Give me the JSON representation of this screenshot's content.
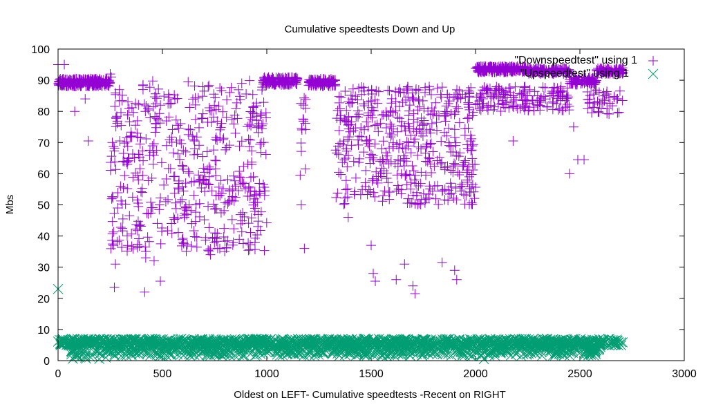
{
  "chart_data": {
    "type": "scatter",
    "title": "Cumulative speedtests Down and Up",
    "xlabel": "Oldest on LEFT- Cumulative speedtests -Recent on RIGHT",
    "ylabel": "Mbs",
    "xlim": [
      0,
      3000
    ],
    "ylim": [
      0,
      100
    ],
    "xticks": [
      0,
      500,
      1000,
      1500,
      2000,
      2500,
      3000
    ],
    "yticks": [
      0,
      10,
      20,
      30,
      40,
      50,
      60,
      70,
      80,
      90,
      100
    ],
    "grid": false,
    "legend_position": "top-right",
    "series": [
      {
        "name": "\"Downspeedtest\" using 1",
        "marker": "plus",
        "color": "#9400d3",
        "dense_regions": [
          {
            "x": [
              0,
              250
            ],
            "y": [
              88,
              90.5
            ],
            "n": 260
          },
          {
            "x": [
              250,
              1000
            ],
            "y": [
              35,
              90
            ],
            "n": 520
          },
          {
            "x": [
              980,
              1150
            ],
            "y": [
              88.5,
              91
            ],
            "n": 130
          },
          {
            "x": [
              1160,
              1190
            ],
            "y": [
              60,
              90
            ],
            "n": 15
          },
          {
            "x": [
              1200,
              1330
            ],
            "y": [
              88,
              90.5
            ],
            "n": 110
          },
          {
            "x": [
              1330,
              2000
            ],
            "y": [
              50,
              88
            ],
            "n": 480
          },
          {
            "x": [
              2000,
              2250
            ],
            "y": [
              92.5,
              94.5
            ],
            "n": 200
          },
          {
            "x": [
              2000,
              2450
            ],
            "y": [
              80,
              88
            ],
            "n": 160
          },
          {
            "x": [
              2250,
              2450
            ],
            "y": [
              92,
              94
            ],
            "n": 140
          },
          {
            "x": [
              2450,
              2580
            ],
            "y": [
              88.5,
              91
            ],
            "n": 80
          },
          {
            "x": [
              2580,
              2710
            ],
            "y": [
              92,
              94
            ],
            "n": 90
          },
          {
            "x": [
              2530,
              2710
            ],
            "y": [
              79,
              87
            ],
            "n": 40
          }
        ],
        "points": [
          [
            0,
            95
          ],
          [
            30,
            95
          ],
          [
            80,
            80
          ],
          [
            130,
            84
          ],
          [
            145,
            70.5
          ],
          [
            250,
            92
          ],
          [
            255,
            91
          ],
          [
            260,
            70
          ],
          [
            265,
            37
          ],
          [
            270,
            23.5
          ],
          [
            275,
            31
          ],
          [
            285,
            49
          ],
          [
            300,
            56
          ],
          [
            415,
            22
          ],
          [
            420,
            33
          ],
          [
            460,
            32
          ],
          [
            490,
            25.5
          ],
          [
            600,
            38
          ],
          [
            730,
            34
          ],
          [
            1160,
            59.5
          ],
          [
            1165,
            50
          ],
          [
            1180,
            36
          ],
          [
            1390,
            46
          ],
          [
            1500,
            37
          ],
          [
            1510,
            28
          ],
          [
            1520,
            25.5
          ],
          [
            1620,
            26
          ],
          [
            1660,
            31
          ],
          [
            1700,
            24
          ],
          [
            1710,
            21.5
          ],
          [
            1840,
            31.5
          ],
          [
            1900,
            29
          ],
          [
            1910,
            26
          ],
          [
            2180,
            70.5
          ],
          [
            2450,
            60
          ],
          [
            2470,
            75
          ],
          [
            2490,
            64.5
          ],
          [
            2520,
            64.5
          ],
          [
            2680,
            79.5
          ],
          [
            2620,
            85
          ]
        ]
      },
      {
        "name": "\"Upspeedtest\" using 1",
        "marker": "cross",
        "color": "#009e73",
        "dense_regions": [
          {
            "x": [
              0,
              2710
            ],
            "y": [
              4.8,
              7
            ],
            "n": 1300
          },
          {
            "x": [
              230,
              2600
            ],
            "y": [
              1.5,
              5
            ],
            "n": 700
          },
          {
            "x": [
              60,
              230
            ],
            "y": [
              0.5,
              4
            ],
            "n": 40
          }
        ],
        "points": [
          [
            0,
            23
          ],
          [
            80,
            1.5
          ],
          [
            130,
            1
          ],
          [
            2040,
            0.5
          ],
          [
            2550,
            3
          ],
          [
            2560,
            4
          ]
        ]
      }
    ]
  }
}
